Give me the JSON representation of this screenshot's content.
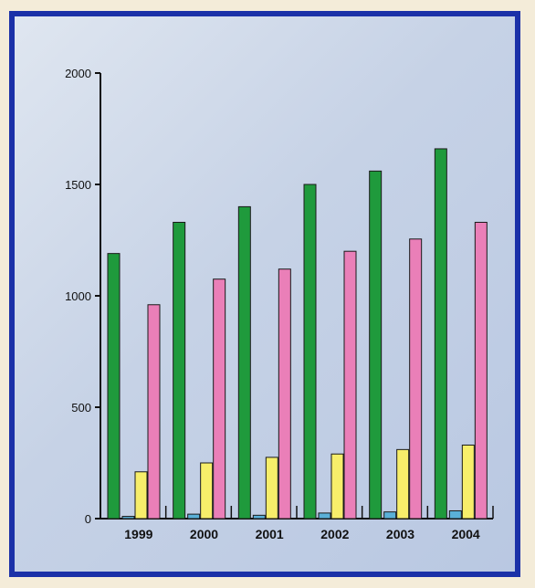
{
  "chart_data": {
    "type": "bar",
    "categories": [
      "1999",
      "2000",
      "2001",
      "2002",
      "2003",
      "2004"
    ],
    "series": [
      {
        "values": [
          1190,
          1330,
          1400,
          1500,
          1560,
          1660
        ],
        "color": "#1f9a3c"
      },
      {
        "values": [
          10,
          20,
          15,
          25,
          30,
          35
        ],
        "color": "#5ab0d8"
      },
      {
        "values": [
          210,
          250,
          275,
          290,
          310,
          330
        ],
        "color": "#f7ee6a"
      },
      {
        "values": [
          960,
          1075,
          1120,
          1200,
          1255,
          1330
        ],
        "color": "#ea7fb8"
      }
    ],
    "y_ticks": [
      "0",
      "500",
      "1000",
      "1500",
      "2000"
    ],
    "ylim": [
      0,
      2000
    ],
    "title": "",
    "xlabel": "",
    "ylabel": "",
    "grid": false,
    "legend": "none"
  }
}
